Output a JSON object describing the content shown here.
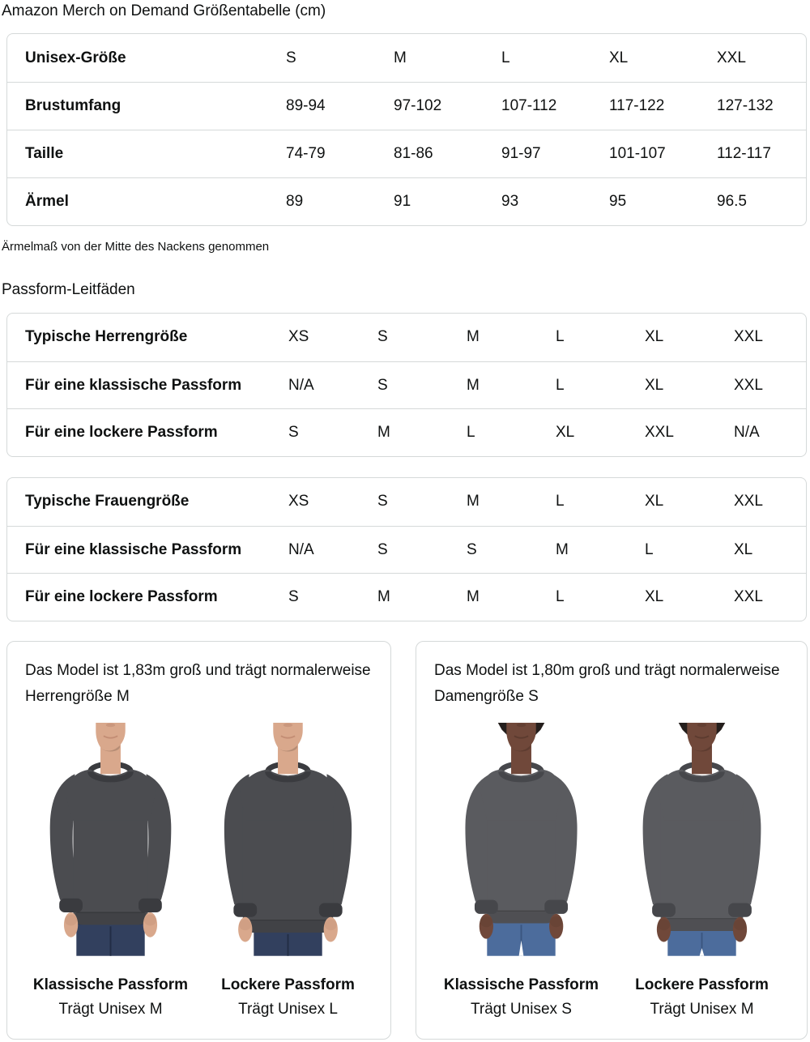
{
  "page": {
    "title": "Amazon Merch on Demand Größentabelle (cm)",
    "footnote": "Ärmelmaß von der Mitte des Nackens genommen",
    "fit_heading": "Passform-Leitfäden"
  },
  "size_table": {
    "rows": [
      {
        "label": "Unisex-Größe",
        "values": [
          "S",
          "M",
          "L",
          "XL",
          "XXL"
        ]
      },
      {
        "label": "Brustumfang",
        "values": [
          "89-94",
          "97-102",
          "107-112",
          "117-122",
          "127-132"
        ]
      },
      {
        "label": "Taille",
        "values": [
          "74-79",
          "81-86",
          "91-97",
          "101-107",
          "112-117"
        ]
      },
      {
        "label": "Ärmel",
        "values": [
          "89",
          "91",
          "93",
          "95",
          "96.5"
        ]
      }
    ]
  },
  "fit_tables": [
    {
      "rows": [
        {
          "label": "Typische Herrengröße",
          "values": [
            "XS",
            "S",
            "M",
            "L",
            "XL",
            "XXL"
          ]
        },
        {
          "label": "Für eine klassische Passform",
          "values": [
            "N/A",
            "S",
            "M",
            "L",
            "XL",
            "XXL"
          ]
        },
        {
          "label": "Für eine lockere Passform",
          "values": [
            "S",
            "M",
            "L",
            "XL",
            "XXL",
            "N/A"
          ]
        }
      ]
    },
    {
      "rows": [
        {
          "label": "Typische Frauengröße",
          "values": [
            "XS",
            "S",
            "M",
            "L",
            "XL",
            "XXL"
          ]
        },
        {
          "label": "Für eine klassische Passform",
          "values": [
            "N/A",
            "S",
            "S",
            "M",
            "L",
            "XL"
          ]
        },
        {
          "label": "Für eine lockere Passform",
          "values": [
            "S",
            "M",
            "M",
            "L",
            "XL",
            "XXL"
          ]
        }
      ]
    }
  ],
  "model_cards": [
    {
      "description": "Das Model ist 1,83m groß und trägt normalerweise Herrengröße M",
      "figures": [
        {
          "fit_label": "Klassische Passform",
          "size_label": "Trägt Unisex M"
        },
        {
          "fit_label": "Lockere Passform",
          "size_label": "Trägt Unisex L"
        }
      ]
    },
    {
      "description": "Das Model ist 1,80m groß und trägt normalerweise Damengröße S",
      "figures": [
        {
          "fit_label": "Klassische Passform",
          "size_label": "Trägt Unisex S"
        },
        {
          "fit_label": "Lockere Passform",
          "size_label": "Trägt Unisex M"
        }
      ]
    }
  ],
  "colors": {
    "text": "#0F1111",
    "border": "#D5D9D9",
    "male_skin": "#D9A88C",
    "male_skin_shadow": "#B9826A",
    "male_shirt": "#4B4C50",
    "male_shirt_dark": "#3A3B3F",
    "male_jeans": "#32405E",
    "male_jeans_dark": "#222D45",
    "female_skin": "#70483A",
    "female_skin_shadow": "#54362B",
    "female_hair": "#241E1C",
    "female_shirt": "#5A5B5F",
    "female_shirt_dark": "#46474B",
    "female_jeans": "#4C6C9C",
    "female_jeans_dark": "#3A5680"
  }
}
